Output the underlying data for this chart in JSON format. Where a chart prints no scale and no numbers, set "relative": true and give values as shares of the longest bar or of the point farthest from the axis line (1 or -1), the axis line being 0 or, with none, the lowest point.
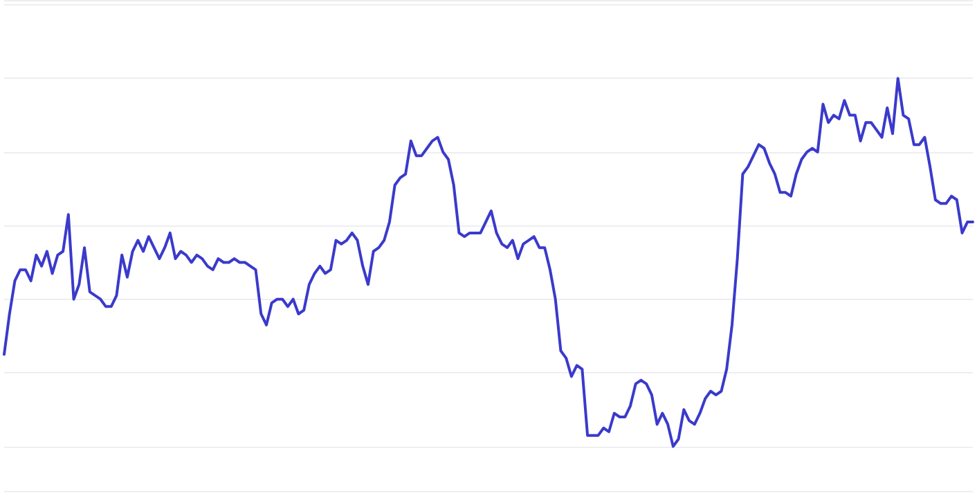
{
  "chart_data": {
    "type": "line",
    "relative": true,
    "grid": "y",
    "line_style": "solid",
    "categories": [
      null,
      null,
      null,
      null,
      null,
      null,
      null,
      null,
      null,
      null,
      null,
      null,
      null,
      null,
      null,
      null,
      null,
      null,
      null,
      null,
      null,
      null,
      null,
      null,
      null,
      null,
      null,
      null,
      null,
      null,
      null,
      null,
      null,
      null,
      null,
      null,
      null,
      null,
      null,
      null,
      null,
      null,
      null,
      null,
      null,
      null,
      null,
      null,
      null,
      null,
      null,
      null,
      null,
      null,
      null,
      null,
      null,
      null,
      null,
      null,
      null,
      null,
      null,
      null,
      null,
      null,
      null,
      null,
      null,
      null,
      null,
      null,
      null,
      null,
      null,
      null,
      null,
      null,
      null,
      null,
      null,
      null,
      null,
      null,
      null,
      null,
      null,
      null,
      null,
      null,
      null,
      null,
      null,
      null,
      null,
      null,
      null,
      null,
      null,
      null,
      null,
      null,
      null,
      null,
      null,
      null,
      null,
      null,
      null,
      null,
      null,
      null,
      null,
      null,
      null,
      null,
      null,
      null,
      null,
      null,
      null,
      null,
      null,
      null,
      null,
      null,
      null,
      null,
      null,
      null,
      null,
      null,
      null,
      null,
      null,
      null,
      null,
      null,
      null,
      null,
      null,
      null,
      null,
      null,
      null,
      null,
      null,
      null,
      null,
      null,
      null,
      null,
      null,
      null,
      null,
      null,
      null,
      null,
      null,
      null,
      null,
      null,
      null,
      null,
      null,
      null,
      null,
      null,
      null,
      null,
      null,
      null,
      null,
      null,
      null,
      null,
      null,
      null,
      null,
      null,
      null,
      null
    ],
    "series": [
      {
        "color": "#3a3acc",
        "values": [
          0.25,
          0.36,
          0.45,
          0.48,
          0.48,
          0.45,
          0.52,
          0.49,
          0.53,
          0.47,
          0.52,
          0.53,
          0.63,
          0.4,
          0.44,
          0.54,
          0.42,
          0.41,
          0.4,
          0.38,
          0.38,
          0.41,
          0.52,
          0.46,
          0.53,
          0.56,
          0.53,
          0.57,
          0.54,
          0.51,
          0.54,
          0.58,
          0.51,
          0.53,
          0.52,
          0.5,
          0.52,
          0.51,
          0.49,
          0.48,
          0.51,
          0.5,
          0.5,
          0.51,
          0.5,
          0.5,
          0.49,
          0.48,
          0.36,
          0.33,
          0.39,
          0.4,
          0.4,
          0.38,
          0.4,
          0.36,
          0.37,
          0.44,
          0.47,
          0.49,
          0.47,
          0.48,
          0.56,
          0.55,
          0.56,
          0.58,
          0.56,
          0.49,
          0.44,
          0.53,
          0.54,
          0.56,
          0.61,
          0.71,
          0.73,
          0.74,
          0.83,
          0.79,
          0.79,
          0.81,
          0.83,
          0.84,
          0.8,
          0.78,
          0.71,
          0.58,
          0.57,
          0.58,
          0.58,
          0.58,
          0.61,
          0.64,
          0.58,
          0.55,
          0.54,
          0.56,
          0.51,
          0.55,
          0.56,
          0.57,
          0.54,
          0.54,
          0.48,
          0.4,
          0.26,
          0.24,
          0.19,
          0.22,
          0.21,
          0.03,
          0.03,
          0.03,
          0.05,
          0.04,
          0.09,
          0.08,
          0.08,
          0.11,
          0.17,
          0.18,
          0.17,
          0.14,
          0.06,
          0.09,
          0.06,
          0.0,
          0.02,
          0.1,
          0.07,
          0.06,
          0.09,
          0.13,
          0.15,
          0.14,
          0.15,
          0.21,
          0.33,
          0.51,
          0.74,
          0.76,
          0.79,
          0.82,
          0.81,
          0.77,
          0.74,
          0.69,
          0.69,
          0.68,
          0.74,
          0.78,
          0.8,
          0.81,
          0.8,
          0.93,
          0.88,
          0.9,
          0.89,
          0.94,
          0.9,
          0.9,
          0.83,
          0.88,
          0.88,
          0.86,
          0.84,
          0.92,
          0.85,
          1.0,
          0.9,
          0.89,
          0.82,
          0.82,
          0.84,
          0.76,
          0.67,
          0.66,
          0.66,
          0.68,
          0.67,
          0.58,
          0.61,
          0.61
        ]
      }
    ]
  }
}
